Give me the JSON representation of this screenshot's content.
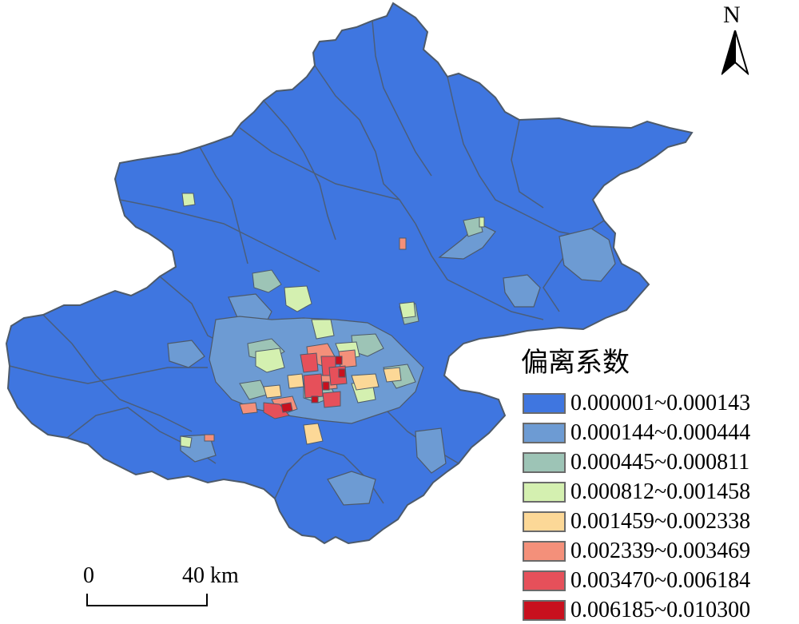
{
  "north_label": "N",
  "scale": {
    "zero": "0",
    "end": "40 km"
  },
  "legend": {
    "title": "偏离系数",
    "items": [
      {
        "label": "0.000001~0.000143",
        "color": "#3f76e0"
      },
      {
        "label": "0.000144~0.000444",
        "color": "#6d9bd3"
      },
      {
        "label": "0.000445~0.000811",
        "color": "#9dc4b6"
      },
      {
        "label": "0.000812~0.001458",
        "color": "#d4f0b0"
      },
      {
        "label": "0.001459~0.002338",
        "color": "#fcd897"
      },
      {
        "label": "0.002339~0.003469",
        "color": "#f4907a"
      },
      {
        "label": "0.003470~0.006184",
        "color": "#e6505a"
      },
      {
        "label": "0.006185~0.010300",
        "color": "#c8101e"
      }
    ]
  },
  "colors": {
    "boundary": "#4d5a6a"
  }
}
